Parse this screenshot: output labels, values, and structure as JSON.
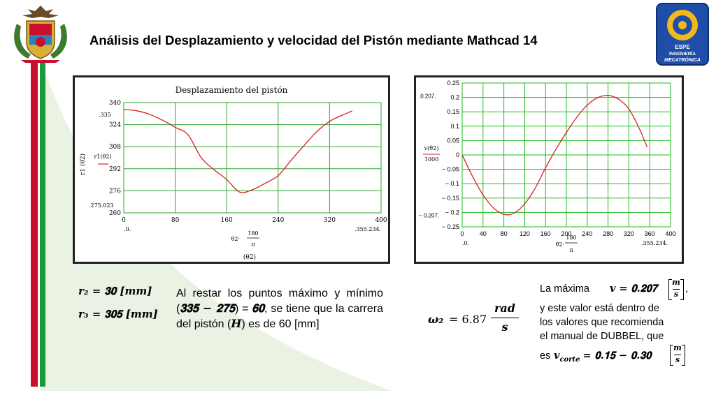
{
  "header": {
    "title": "Análisis del Desplazamiento  y velocidad del Pistón mediante Mathcad 14",
    "logo_right_lines": [
      "ESPE",
      "INGENIERÍA",
      "MECATRÓNICA"
    ]
  },
  "colors": {
    "red_stripe": "#c8102e",
    "green_stripe": "#1c9a3a",
    "curve": "#d62020",
    "grid": "#22bb22",
    "grid_plot1": "#2fa52f"
  },
  "chart_data": [
    {
      "type": "line",
      "title": "Desplazamiento del pistón",
      "ylabel": "r1 (θ2)",
      "legend_label": "r1(θ2)",
      "xlabel_num": "180",
      "xlabel_prefix": "θ2·",
      "xlabel_den": "π",
      "xlabel_sub": "(θ2)",
      "xlim": [
        0,
        400
      ],
      "ylim": [
        260,
        340
      ],
      "xticks": [
        0,
        80,
        160,
        240,
        320,
        400
      ],
      "yticks": [
        260,
        276,
        292,
        308,
        324,
        340
      ],
      "ymax_marker": ".335",
      "ymin_marker": ".275.023",
      "xmin_marker": ".0.",
      "xmax_marker": ".355.234.",
      "series": [
        {
          "name": "r1(θ2)",
          "x": [
            0,
            20,
            40,
            60,
            80,
            100,
            120,
            140,
            160,
            180,
            200,
            220,
            240,
            260,
            280,
            300,
            320,
            340,
            355
          ],
          "y": [
            335,
            334.1,
            331.5,
            327.3,
            322.1,
            316.6,
            300.3,
            291.4,
            284.2,
            275.1,
            276.8,
            281.5,
            287.0,
            298.1,
            308.7,
            318.9,
            326.4,
            330.9,
            333.9
          ]
        }
      ]
    },
    {
      "type": "line",
      "ylabel_num": "v(θ2)",
      "ylabel_den": "1000",
      "xlabel_num": "180",
      "xlabel_prefix": "θ2·",
      "xlabel_den": "π",
      "xlim": [
        0,
        400
      ],
      "ylim": [
        -0.25,
        0.25
      ],
      "xticks": [
        0,
        40,
        80,
        120,
        160,
        200,
        240,
        280,
        320,
        360,
        400
      ],
      "yticks": [
        0.25,
        0.2,
        0.15,
        0.1,
        0.05,
        0,
        -0.05,
        -0.1,
        -0.15,
        -0.2,
        -0.25
      ],
      "ytick_labels": [
        "0.25",
        "0.2",
        "0.15",
        "0.1",
        "0.05",
        "0",
        "− 0.05",
        "− 0.1",
        "− 0.15",
        "− 0.2",
        "− 0.25"
      ],
      "ymax_marker": ".0.207.",
      "ymin_marker": "− 0.207.",
      "xmin_marker": ".0.",
      "xmax_marker": ".355.234.",
      "series": [
        {
          "name": "v(θ2)",
          "x": [
            0,
            20,
            40,
            60,
            80,
            100,
            120,
            140,
            160,
            180,
            200,
            220,
            240,
            260,
            280,
            300,
            320,
            340,
            355
          ],
          "y": [
            0,
            -0.075,
            -0.139,
            -0.184,
            -0.207,
            -0.202,
            -0.17,
            -0.116,
            -0.045,
            0.02,
            0.078,
            0.131,
            0.173,
            0.199,
            0.207,
            0.194,
            0.16,
            0.092,
            0.027
          ]
        }
      ]
    }
  ],
  "params": {
    "r2_lhs": "𝒓₂",
    "r2_rhs": "= 𝟑𝟎 [𝒎𝒎]",
    "r3_lhs": "𝒓₃",
    "r3_rhs": "= 𝟑𝟎𝟓 [𝒎𝒎]"
  },
  "paragraph": {
    "part1": "Al restar los puntos máximo y mínimo (",
    "expr": "𝟑𝟑𝟓 − 𝟐𝟕𝟓",
    "part2": ") = ",
    "result": "𝟔𝟎",
    "part3": ", se tiene que la carrera del pistón (",
    "var": "𝑯",
    "part4": ") es de 60 [mm]"
  },
  "omega": {
    "lhs": "𝝎₂",
    "value": "= 6.87",
    "num": "𝒓𝒂𝒅",
    "den": "𝒔"
  },
  "right_note": {
    "line1_prefix": "La máxima",
    "line1_expr": "𝒗 = 𝟎.𝟐𝟎𝟕",
    "unit_num": "𝒎",
    "unit_den": "𝒔",
    "line1_suffix": ",",
    "line2": "y este valor está dentro de",
    "line3": "los valores que recomienda",
    "line4": "el manual de DUBBEL, que",
    "line5_prefix": "es",
    "line5_expr": "𝒗",
    "line5_sub": "𝒄𝒐𝒓𝒕𝒆",
    "line5_range": "= 𝟎.𝟏𝟓 − 𝟎.𝟑𝟎"
  }
}
